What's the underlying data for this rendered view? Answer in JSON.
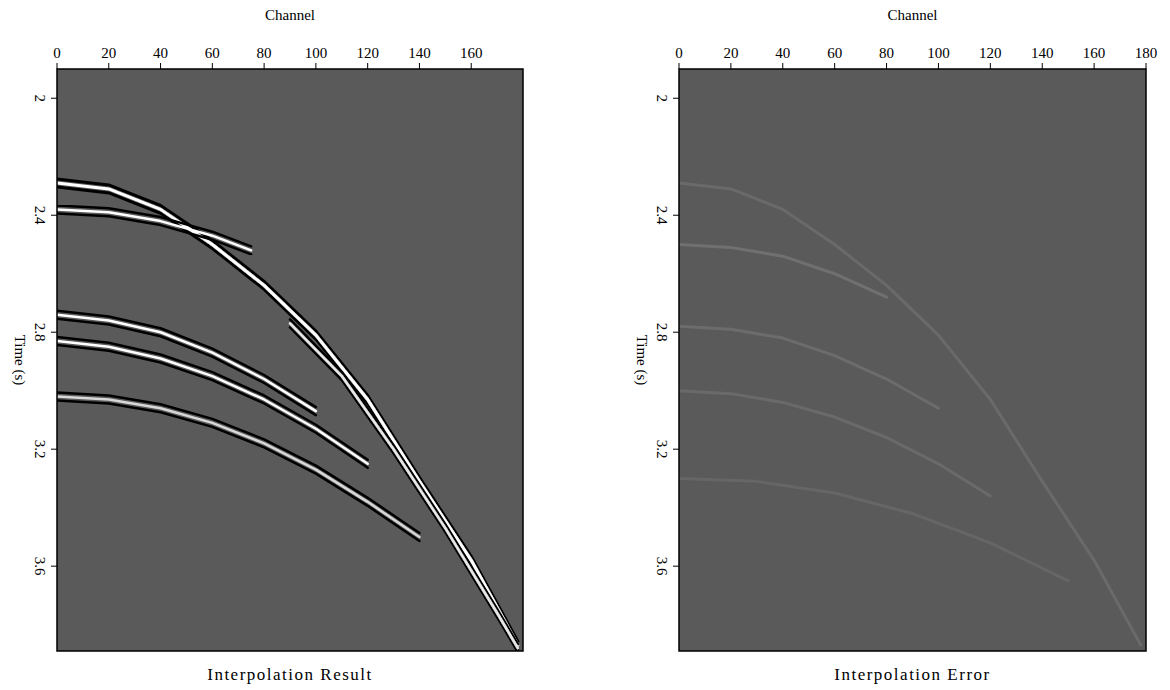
{
  "chart_data": [
    {
      "type": "line",
      "title": "Interpolation Result",
      "x_label": "Channel",
      "y_label": "Time (s)",
      "xlim": [
        0,
        180
      ],
      "ylim": [
        1.9,
        3.89
      ],
      "xticks": [
        0,
        20,
        40,
        60,
        80,
        100,
        120,
        140,
        160
      ],
      "yticks": [
        2,
        2.4,
        2.8,
        3.2,
        3.6
      ],
      "series": [
        {
          "color": "#ffffff",
          "x": [
            0,
            20,
            40,
            60,
            80,
            100,
            120,
            140,
            160,
            178
          ],
          "values": [
            2.29,
            2.31,
            2.38,
            2.5,
            2.64,
            2.81,
            3.03,
            3.31,
            3.58,
            3.87
          ]
        },
        {
          "color": "#ffffff",
          "x": [
            0,
            20,
            40,
            60,
            75
          ],
          "values": [
            2.38,
            2.39,
            2.42,
            2.47,
            2.52
          ]
        },
        {
          "color": "#ffffff",
          "x": [
            0,
            20,
            40,
            60,
            80,
            100
          ],
          "values": [
            2.74,
            2.76,
            2.8,
            2.87,
            2.96,
            3.07
          ]
        },
        {
          "color": "#ffffff",
          "x": [
            0,
            20,
            40,
            60,
            80,
            100,
            120
          ],
          "values": [
            2.83,
            2.85,
            2.89,
            2.95,
            3.03,
            3.13,
            3.25
          ]
        },
        {
          "color": "#d8d8d8",
          "x": [
            0,
            20,
            40,
            60,
            80,
            100,
            120,
            140
          ],
          "values": [
            3.02,
            3.03,
            3.06,
            3.11,
            3.18,
            3.27,
            3.38,
            3.5
          ]
        },
        {
          "color": "#e8e8e8",
          "x": [
            90,
            110,
            130,
            150,
            170,
            178
          ],
          "values": [
            2.77,
            2.95,
            3.2,
            3.47,
            3.76,
            3.88
          ]
        }
      ]
    },
    {
      "type": "line",
      "title": "Interpolation Error",
      "x_label": "Channel",
      "y_label": "Time (s)",
      "xlim": [
        0,
        180
      ],
      "ylim": [
        1.9,
        3.89
      ],
      "xticks": [
        0,
        20,
        40,
        60,
        80,
        100,
        120,
        140,
        160,
        180
      ],
      "yticks": [
        2,
        2.4,
        2.8,
        3.2,
        3.6
      ],
      "series": [
        {
          "color": "#6a6a6a",
          "x": [
            0,
            20,
            40,
            60,
            80,
            100,
            120,
            140,
            160,
            178
          ],
          "values": [
            2.29,
            2.31,
            2.38,
            2.5,
            2.64,
            2.81,
            3.03,
            3.31,
            3.58,
            3.87
          ]
        },
        {
          "color": "#707070",
          "x": [
            0,
            20,
            40,
            60,
            80
          ],
          "values": [
            2.5,
            2.51,
            2.54,
            2.6,
            2.68
          ]
        },
        {
          "color": "#6c6c6c",
          "x": [
            0,
            20,
            40,
            60,
            80,
            100
          ],
          "values": [
            2.78,
            2.79,
            2.82,
            2.88,
            2.96,
            3.06
          ]
        },
        {
          "color": "#6a6a6a",
          "x": [
            0,
            20,
            40,
            60,
            80,
            100,
            120
          ],
          "values": [
            3.0,
            3.01,
            3.04,
            3.09,
            3.16,
            3.25,
            3.36
          ]
        },
        {
          "color": "#666666",
          "x": [
            0,
            30,
            60,
            90,
            120,
            150
          ],
          "values": [
            3.3,
            3.31,
            3.35,
            3.42,
            3.52,
            3.65
          ]
        }
      ]
    }
  ]
}
